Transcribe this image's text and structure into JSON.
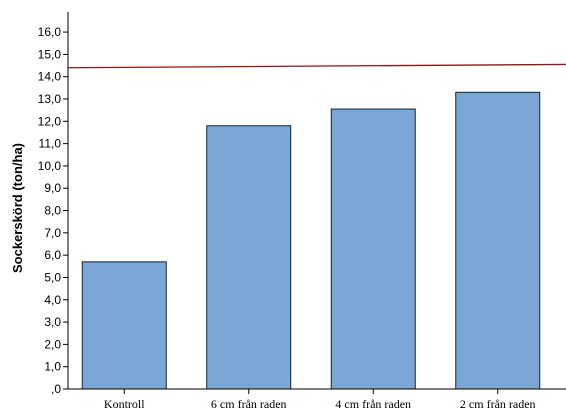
{
  "chart_data": {
    "type": "bar",
    "categories": [
      "Kontroll",
      "6 cm från raden",
      "4 cm från raden",
      "2 cm från raden"
    ],
    "values": [
      5.7,
      11.8,
      12.55,
      13.3
    ],
    "xlabel": "",
    "ylabel": "Sockerskörd (ton/ha)",
    "ylim": [
      0,
      16.9
    ],
    "yticks": [
      0,
      1,
      2,
      3,
      4,
      5,
      6,
      7,
      8,
      9,
      10,
      11,
      12,
      13,
      14,
      15,
      16
    ],
    "ytick_labels": [
      ",0",
      "1,0",
      "2,0",
      "3,0",
      "4,0",
      "5,0",
      "6,0",
      "7,0",
      "8,0",
      "9,0",
      "10,0",
      "11,0",
      "12,0",
      "13,0",
      "14,0",
      "15,0",
      "16,0"
    ],
    "reference_line": {
      "y_start": 14.4,
      "y_end": 14.55,
      "color": "#a01010"
    },
    "grid": false,
    "colors": {
      "bar_fill": "#7aa7d6",
      "bar_stroke": "#222222",
      "axis": "#000000"
    }
  }
}
